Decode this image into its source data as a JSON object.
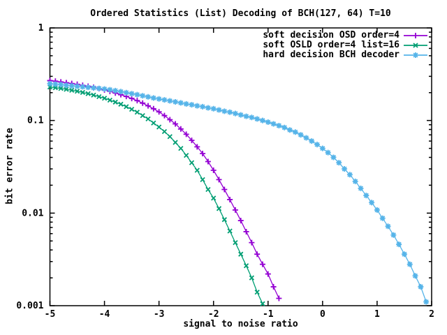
{
  "chart_data": {
    "type": "line",
    "title": "Ordered Statistics (List) Decoding of BCH(127, 64) T=10",
    "xlabel": "signal to noise ratio",
    "ylabel": "bit error rate",
    "grid": false,
    "legend_position": "top-right-inside",
    "background_color": "#ffffff",
    "axis_color": "#000000",
    "x_axis": {
      "scale": "linear",
      "min": -5,
      "max": 2,
      "ticks": [
        -5,
        -4,
        -3,
        -2,
        -1,
        0,
        1,
        2
      ]
    },
    "y_axis": {
      "scale": "log",
      "min": 0.001,
      "max": 1,
      "ticks": [
        {
          "value": 1,
          "label": "1"
        },
        {
          "value": 0.1,
          "label": "0.1"
        },
        {
          "value": 0.01,
          "label": "0.01"
        },
        {
          "value": 0.001,
          "label": "0.001"
        }
      ],
      "minor_ticks": true
    },
    "series": [
      {
        "name": "soft decision OSD order=4",
        "color": "#9400d3",
        "marker": "plus",
        "x_start": -5.0,
        "x_step": 0.1,
        "values": [
          0.27,
          0.266,
          0.261,
          0.256,
          0.251,
          0.246,
          0.24,
          0.234,
          0.228,
          0.221,
          0.214,
          0.206,
          0.198,
          0.19,
          0.182,
          0.173,
          0.164,
          0.154,
          0.144,
          0.134,
          0.124,
          0.113,
          0.102,
          0.092,
          0.081,
          0.071,
          0.061,
          0.052,
          0.044,
          0.036,
          0.029,
          0.023,
          0.018,
          0.014,
          0.0108,
          0.0083,
          0.0063,
          0.0048,
          0.0036,
          0.0028,
          0.0022,
          0.0016,
          0.0012
        ]
      },
      {
        "name": "soft OSLD order=4 list=16",
        "color": "#009e73",
        "marker": "cross",
        "x_start": -5.0,
        "x_step": 0.1,
        "values": [
          0.23,
          0.226,
          0.222,
          0.217,
          0.212,
          0.207,
          0.201,
          0.195,
          0.188,
          0.181,
          0.174,
          0.166,
          0.158,
          0.15,
          0.141,
          0.132,
          0.123,
          0.113,
          0.104,
          0.094,
          0.085,
          0.076,
          0.067,
          0.058,
          0.05,
          0.042,
          0.035,
          0.029,
          0.023,
          0.018,
          0.0145,
          0.0112,
          0.0085,
          0.0064,
          0.0048,
          0.0036,
          0.0027,
          0.002,
          0.0014,
          0.00105
        ]
      },
      {
        "name": "hard decision BCH decoder",
        "color": "#56b4e9",
        "marker": "asterisk",
        "x_start": -5.0,
        "x_step": 0.1,
        "values": [
          0.25,
          0.247,
          0.244,
          0.24,
          0.237,
          0.234,
          0.231,
          0.228,
          0.225,
          0.222,
          0.219,
          0.215,
          0.21,
          0.205,
          0.2,
          0.195,
          0.19,
          0.185,
          0.18,
          0.175,
          0.171,
          0.167,
          0.163,
          0.159,
          0.155,
          0.151,
          0.148,
          0.144,
          0.141,
          0.137,
          0.134,
          0.13,
          0.126,
          0.123,
          0.119,
          0.115,
          0.111,
          0.108,
          0.104,
          0.1,
          0.096,
          0.092,
          0.088,
          0.084,
          0.079,
          0.075,
          0.07,
          0.065,
          0.06,
          0.055,
          0.05,
          0.045,
          0.04,
          0.035,
          0.03,
          0.026,
          0.022,
          0.0185,
          0.0155,
          0.013,
          0.0108,
          0.0088,
          0.0072,
          0.0058,
          0.0046,
          0.0036,
          0.0028,
          0.0021,
          0.0016,
          0.0011
        ]
      }
    ]
  }
}
